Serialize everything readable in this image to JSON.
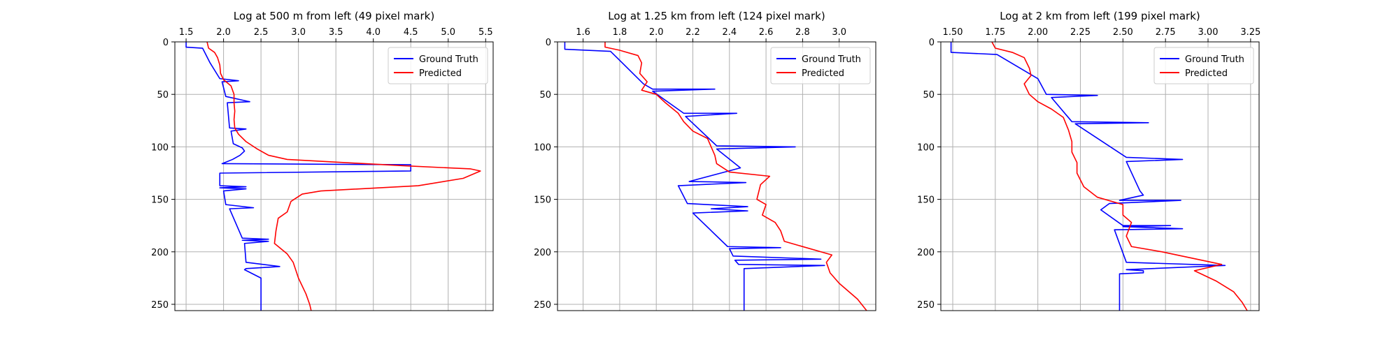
{
  "chart_data": [
    {
      "type": "line",
      "title": "Log at 500 m from left (49 pixel mark)",
      "xlabel": "",
      "ylabel": "",
      "xlim": [
        1.35,
        5.6
      ],
      "ylim": [
        256,
        0
      ],
      "xticks": [
        "1.5",
        "2.0",
        "2.5",
        "3.0",
        "3.5",
        "4.0",
        "4.5",
        "5.0",
        "5.5"
      ],
      "yticks": [
        "0",
        "50",
        "100",
        "150",
        "200",
        "250"
      ],
      "x_axis_position": "top",
      "grid": true,
      "legend": "top-right",
      "series": [
        {
          "name": "Ground Truth",
          "color": "#0000ff",
          "points": [
            [
              1.5,
              0
            ],
            [
              1.5,
              5
            ],
            [
              1.72,
              6
            ],
            [
              1.82,
              20
            ],
            [
              1.95,
              35
            ],
            [
              2.2,
              37
            ],
            [
              1.98,
              38
            ],
            [
              2.03,
              52
            ],
            [
              2.35,
              57
            ],
            [
              2.05,
              58
            ],
            [
              2.08,
              82
            ],
            [
              2.3,
              83
            ],
            [
              2.1,
              85
            ],
            [
              2.13,
              97
            ],
            [
              2.25,
              101
            ],
            [
              2.28,
              104
            ],
            [
              2.22,
              108
            ],
            [
              2.12,
              112
            ],
            [
              1.98,
              116
            ],
            [
              4.5,
              117
            ],
            [
              4.5,
              123
            ],
            [
              1.95,
              125
            ],
            [
              1.95,
              137
            ],
            [
              2.3,
              138
            ],
            [
              1.95,
              139
            ],
            [
              2.3,
              140
            ],
            [
              2.0,
              142
            ],
            [
              2.03,
              155
            ],
            [
              2.4,
              158
            ],
            [
              2.08,
              159
            ],
            [
              2.25,
              187
            ],
            [
              2.6,
              188
            ],
            [
              2.25,
              189
            ],
            [
              2.6,
              190
            ],
            [
              2.28,
              192
            ],
            [
              2.3,
              210
            ],
            [
              2.75,
              214
            ],
            [
              2.3,
              216
            ],
            [
              2.28,
              217
            ],
            [
              2.5,
              225
            ],
            [
              2.5,
              256
            ]
          ]
        },
        {
          "name": "Predicted",
          "color": "#ff0000",
          "points": [
            [
              1.78,
              0
            ],
            [
              1.8,
              6
            ],
            [
              1.88,
              10
            ],
            [
              1.92,
              15
            ],
            [
              1.95,
              22
            ],
            [
              1.96,
              30
            ],
            [
              2.0,
              36
            ],
            [
              2.1,
              42
            ],
            [
              2.14,
              50
            ],
            [
              2.14,
              58
            ],
            [
              2.15,
              66
            ],
            [
              2.14,
              74
            ],
            [
              2.15,
              82
            ],
            [
              2.2,
              88
            ],
            [
              2.3,
              95
            ],
            [
              2.45,
              102
            ],
            [
              2.6,
              108
            ],
            [
              2.85,
              112
            ],
            [
              4.4,
              118
            ],
            [
              5.3,
              121
            ],
            [
              5.43,
              123
            ],
            [
              5.2,
              130
            ],
            [
              4.6,
              137
            ],
            [
              3.3,
              142
            ],
            [
              3.05,
              145
            ],
            [
              2.9,
              152
            ],
            [
              2.85,
              162
            ],
            [
              2.73,
              168
            ],
            [
              2.7,
              180
            ],
            [
              2.68,
              192
            ],
            [
              2.85,
              202
            ],
            [
              2.93,
              210
            ],
            [
              3.0,
              225
            ],
            [
              3.1,
              240
            ],
            [
              3.15,
              250
            ],
            [
              3.17,
              256
            ]
          ]
        }
      ]
    },
    {
      "type": "line",
      "title": "Log at 1.25 km from left (124 pixel mark)",
      "xlabel": "",
      "ylabel": "",
      "xlim": [
        1.46,
        3.2
      ],
      "ylim": [
        256,
        0
      ],
      "xticks": [
        "1.6",
        "1.8",
        "2.0",
        "2.2",
        "2.4",
        "2.6",
        "2.8",
        "3.0"
      ],
      "yticks": [
        "0",
        "50",
        "100",
        "150",
        "200",
        "250"
      ],
      "x_axis_position": "top",
      "grid": true,
      "legend": "top-right",
      "series": [
        {
          "name": "Ground Truth",
          "color": "#0000ff",
          "points": [
            [
              1.5,
              0
            ],
            [
              1.5,
              7
            ],
            [
              1.75,
              9
            ],
            [
              1.93,
              40
            ],
            [
              1.98,
              45
            ],
            [
              2.32,
              45
            ],
            [
              1.98,
              47
            ],
            [
              2.15,
              68
            ],
            [
              2.44,
              68
            ],
            [
              2.16,
              71
            ],
            [
              2.33,
              99
            ],
            [
              2.76,
              100
            ],
            [
              2.33,
              102
            ],
            [
              2.46,
              120
            ],
            [
              2.18,
              133
            ],
            [
              2.49,
              134
            ],
            [
              2.12,
              137
            ],
            [
              2.17,
              154
            ],
            [
              2.5,
              157
            ],
            [
              2.3,
              159
            ],
            [
              2.5,
              161
            ],
            [
              2.2,
              163
            ],
            [
              2.39,
              195
            ],
            [
              2.68,
              196
            ],
            [
              2.4,
              197
            ],
            [
              2.42,
              204
            ],
            [
              2.9,
              207
            ],
            [
              2.43,
              208
            ],
            [
              2.45,
              212
            ],
            [
              2.92,
              213
            ],
            [
              2.48,
              216
            ],
            [
              2.48,
              256
            ]
          ]
        },
        {
          "name": "Predicted",
          "color": "#ff0000",
          "points": [
            [
              1.72,
              0
            ],
            [
              1.72,
              5
            ],
            [
              1.8,
              8
            ],
            [
              1.9,
              13
            ],
            [
              1.92,
              20
            ],
            [
              1.91,
              30
            ],
            [
              1.95,
              38
            ],
            [
              1.92,
              46
            ],
            [
              2.0,
              50
            ],
            [
              2.05,
              58
            ],
            [
              2.12,
              68
            ],
            [
              2.15,
              76
            ],
            [
              2.2,
              85
            ],
            [
              2.28,
              92
            ],
            [
              2.3,
              100
            ],
            [
              2.32,
              108
            ],
            [
              2.33,
              116
            ],
            [
              2.4,
              124
            ],
            [
              2.62,
              128
            ],
            [
              2.57,
              136
            ],
            [
              2.55,
              150
            ],
            [
              2.6,
              155
            ],
            [
              2.58,
              165
            ],
            [
              2.65,
              172
            ],
            [
              2.68,
              180
            ],
            [
              2.7,
              190
            ],
            [
              2.96,
              203
            ],
            [
              2.93,
              210
            ],
            [
              2.95,
              220
            ],
            [
              3.0,
              230
            ],
            [
              3.1,
              245
            ],
            [
              3.15,
              256
            ]
          ]
        }
      ]
    },
    {
      "type": "line",
      "title": "Log at 2 km from left (199 pixel mark)",
      "xlabel": "",
      "ylabel": "",
      "xlim": [
        1.43,
        3.3
      ],
      "ylim": [
        256,
        0
      ],
      "xticks": [
        "1.50",
        "1.75",
        "2.00",
        "2.25",
        "2.50",
        "2.75",
        "3.00",
        "3.25"
      ],
      "yticks": [
        "0",
        "50",
        "100",
        "150",
        "200",
        "250"
      ],
      "x_axis_position": "top",
      "grid": true,
      "legend": "top-right",
      "series": [
        {
          "name": "Ground Truth",
          "color": "#0000ff",
          "points": [
            [
              1.49,
              0
            ],
            [
              1.49,
              10
            ],
            [
              1.76,
              12
            ],
            [
              2.0,
              35
            ],
            [
              2.05,
              50
            ],
            [
              2.35,
              51
            ],
            [
              2.08,
              53
            ],
            [
              2.2,
              76
            ],
            [
              2.65,
              77
            ],
            [
              2.22,
              78
            ],
            [
              2.52,
              110
            ],
            [
              2.85,
              112
            ],
            [
              2.52,
              114
            ],
            [
              2.6,
              142
            ],
            [
              2.62,
              146
            ],
            [
              2.48,
              151
            ],
            [
              2.84,
              151
            ],
            [
              2.42,
              154
            ],
            [
              2.37,
              160
            ],
            [
              2.5,
              175
            ],
            [
              2.78,
              175
            ],
            [
              2.5,
              176
            ],
            [
              2.85,
              178
            ],
            [
              2.45,
              179
            ],
            [
              2.52,
              210
            ],
            [
              3.1,
              213
            ],
            [
              2.52,
              217
            ],
            [
              2.62,
              218
            ],
            [
              2.62,
              220
            ],
            [
              2.48,
              221
            ],
            [
              2.48,
              256
            ]
          ]
        },
        {
          "name": "Predicted",
          "color": "#ff0000",
          "points": [
            [
              1.73,
              0
            ],
            [
              1.75,
              6
            ],
            [
              1.85,
              10
            ],
            [
              1.92,
              15
            ],
            [
              1.95,
              25
            ],
            [
              1.96,
              32
            ],
            [
              1.92,
              40
            ],
            [
              1.95,
              50
            ],
            [
              2.0,
              57
            ],
            [
              2.08,
              64
            ],
            [
              2.15,
              72
            ],
            [
              2.18,
              84
            ],
            [
              2.2,
              95
            ],
            [
              2.2,
              105
            ],
            [
              2.23,
              115
            ],
            [
              2.23,
              125
            ],
            [
              2.27,
              138
            ],
            [
              2.35,
              148
            ],
            [
              2.5,
              155
            ],
            [
              2.5,
              165
            ],
            [
              2.55,
              172
            ],
            [
              2.52,
              185
            ],
            [
              2.55,
              195
            ],
            [
              2.73,
              200
            ],
            [
              3.08,
              212
            ],
            [
              2.92,
              218
            ],
            [
              3.05,
              228
            ],
            [
              3.15,
              238
            ],
            [
              3.2,
              248
            ],
            [
              3.23,
              256
            ]
          ]
        }
      ]
    }
  ]
}
